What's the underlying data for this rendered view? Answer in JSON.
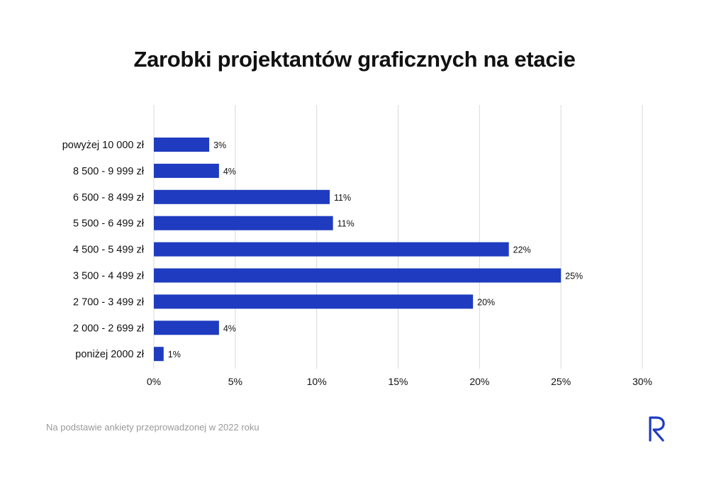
{
  "title": "Zarobki projektantów graficznych na etacie",
  "footnote": "Na podstawie ankiety przeprowadzonej w 2022 roku",
  "logo_icon": "r-logo-icon",
  "colors": {
    "bar": "#1f3bbf",
    "grid": "#d9d9d9",
    "logo": "#1f3bbf"
  },
  "chart_data": {
    "type": "bar",
    "orientation": "horizontal",
    "title": "Zarobki projektantów graficznych na etacie",
    "categories": [
      "powyżej 10 000 zł",
      "8 500 - 9 999 zł",
      "6 500 - 8 499 zł",
      "5 500 - 6 499 zł",
      "4 500 - 5 499 zł",
      "3 500 - 4 499 zł",
      "2 700 - 3 499 zł",
      "2 000 - 2 699 zł",
      "poniżej 2000 zł"
    ],
    "values": [
      3.4,
      4.0,
      10.8,
      11.0,
      21.8,
      25.0,
      19.6,
      4.0,
      0.6
    ],
    "data_labels": [
      "3%",
      "4%",
      "11%",
      "11%",
      "22%",
      "25%",
      "20%",
      "4%",
      "1%"
    ],
    "xticks": [
      "0%",
      "5%",
      "10%",
      "15%",
      "20%",
      "25%",
      "30%"
    ],
    "xlim": [
      0,
      30
    ],
    "grid": true,
    "legend": "none"
  }
}
